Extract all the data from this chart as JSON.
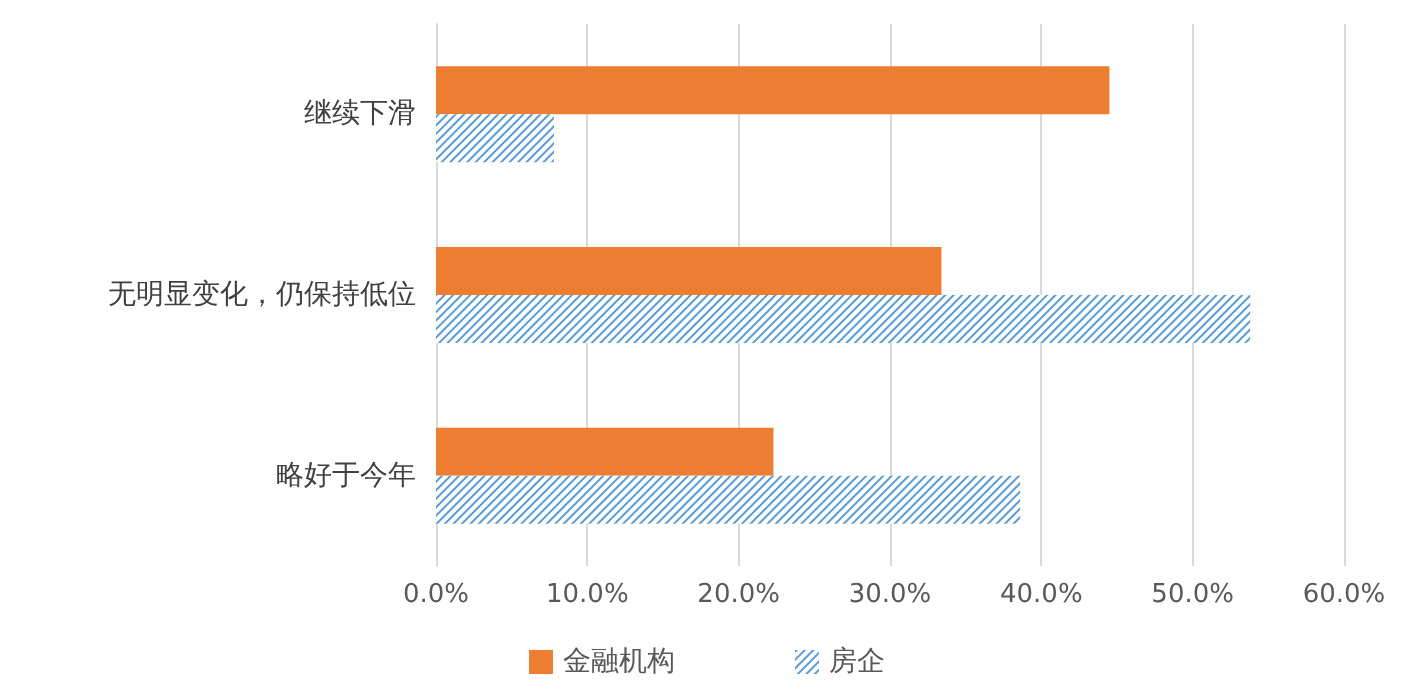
{
  "chart_data": {
    "type": "bar",
    "orientation": "horizontal",
    "categories": [
      "继续下滑",
      "无明显变化，仍保持低位",
      "略好于今年"
    ],
    "series": [
      {
        "name": "金融机构",
        "color": "#ed7d31",
        "values": [
          44.5,
          33.4,
          22.3
        ]
      },
      {
        "name": "房企",
        "color": "#5b9bd5",
        "values": [
          7.8,
          53.8,
          38.6
        ]
      }
    ],
    "xlim": [
      0,
      60
    ],
    "xticks": [
      {
        "value": 0,
        "label": "0.0%"
      },
      {
        "value": 10,
        "label": "10.0%"
      },
      {
        "value": 20,
        "label": "20.0%"
      },
      {
        "value": 30,
        "label": "30.0%"
      },
      {
        "value": 40,
        "label": "40.0%"
      },
      {
        "value": 50,
        "label": "50.0%"
      },
      {
        "value": 60,
        "label": "60.0%"
      }
    ],
    "grid": "x",
    "legend": "bottom"
  }
}
